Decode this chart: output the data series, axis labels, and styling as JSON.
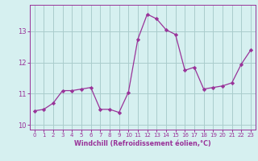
{
  "x": [
    0,
    1,
    2,
    3,
    4,
    5,
    6,
    7,
    8,
    9,
    10,
    11,
    12,
    13,
    14,
    15,
    16,
    17,
    18,
    19,
    20,
    21,
    22,
    23
  ],
  "y": [
    10.45,
    10.5,
    10.7,
    11.1,
    11.1,
    11.15,
    11.2,
    10.5,
    10.5,
    10.4,
    11.05,
    12.75,
    13.55,
    13.4,
    13.05,
    12.9,
    11.75,
    11.85,
    11.15,
    11.2,
    11.25,
    11.35,
    11.95,
    12.4
  ],
  "line_color": "#993399",
  "marker": "D",
  "marker_size": 2.2,
  "bg_color": "#d6f0f0",
  "grid_color": "#aacccc",
  "xlabel": "Windchill (Refroidissement éolien,°C)",
  "xlabel_color": "#993399",
  "tick_color": "#993399",
  "yticks": [
    10,
    11,
    12,
    13
  ],
  "xticks": [
    0,
    1,
    2,
    3,
    4,
    5,
    6,
    7,
    8,
    9,
    10,
    11,
    12,
    13,
    14,
    15,
    16,
    17,
    18,
    19,
    20,
    21,
    22,
    23
  ],
  "ylim": [
    9.85,
    13.85
  ],
  "xlim": [
    -0.5,
    23.5
  ]
}
